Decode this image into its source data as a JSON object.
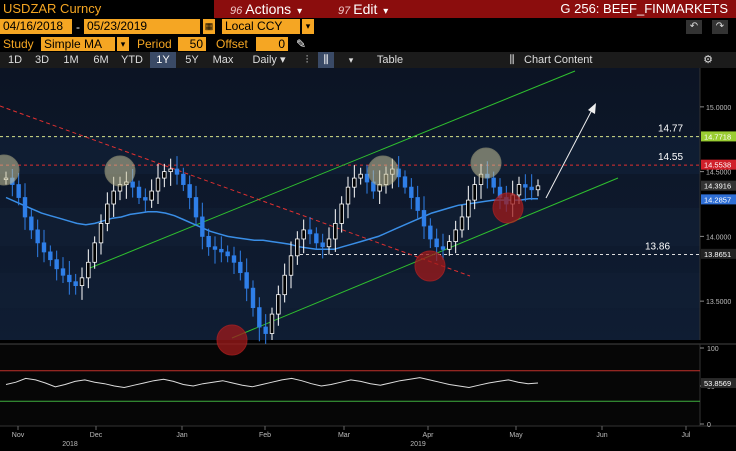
{
  "header": {
    "ticker": "USDZAR Curncy",
    "actions_num": "96",
    "actions_label": "Actions",
    "actions_arrow": "▾",
    "edit_num": "97",
    "edit_label": "Edit",
    "edit_arrow": "▾",
    "function_title": "G 256: BEEF_FINMARKETS"
  },
  "controls": {
    "start_date": "04/16/2018",
    "date_sep": "-",
    "end_date": "05/23/2019",
    "currency": "Local CCY",
    "study_label": "Study",
    "study_value": "Simple MA",
    "period_label": "Period",
    "period_value": "50",
    "offset_label": "Offset",
    "offset_value": "0"
  },
  "toolbar": {
    "ranges": [
      "1D",
      "3D",
      "1M",
      "6M",
      "YTD",
      "1Y",
      "5Y",
      "Max"
    ],
    "active_range": "1Y",
    "frequency": "Daily",
    "table_label": "Table",
    "chart_content_label": "Chart Content"
  },
  "chart_data": {
    "type": "line",
    "price_axis_ticks": [
      "15.0000",
      "14.5000",
      "14.0000",
      "13.5000"
    ],
    "price_ylim": [
      13.2,
      15.3
    ],
    "price_tags": [
      {
        "value": 14.7718,
        "label": "14.7718",
        "color": "#9acd32"
      },
      {
        "value": 14.5538,
        "label": "14.5538",
        "color": "#d0202a"
      },
      {
        "value": 14.3916,
        "label": "14.3916",
        "color": "#333333"
      },
      {
        "value": 14.2857,
        "label": "14.2857",
        "color": "#2f6fd6"
      },
      {
        "value": 13.8651,
        "label": "13.8651",
        "color": "#222222"
      }
    ],
    "level_annotations": [
      {
        "value": 14.77,
        "label": "14.77"
      },
      {
        "value": 14.55,
        "label": "14.55"
      },
      {
        "value": 13.86,
        "label": "13.86"
      }
    ],
    "oscillator_ticks": [
      "100",
      "50",
      "0"
    ],
    "oscillator_last": "53.8569",
    "x_tick_labels": [
      "Nov",
      "Dec",
      "Jan",
      "Feb",
      "Mar",
      "Apr",
      "May",
      "Jun",
      "Jul"
    ],
    "year_labels": [
      "2018",
      "2019"
    ],
    "series": [
      {
        "values": [
          14.45,
          14.4,
          14.3,
          14.15,
          14.05,
          13.95,
          13.88,
          13.82,
          13.75,
          13.7,
          13.65,
          13.62,
          13.68,
          13.8,
          13.95,
          14.1,
          14.25,
          14.35,
          14.4,
          14.42,
          14.38,
          14.3,
          14.28,
          14.35,
          14.45,
          14.5,
          14.52,
          14.48,
          14.4,
          14.3,
          14.15,
          14.0,
          13.92,
          13.9,
          13.88,
          13.85,
          13.8,
          13.72,
          13.6,
          13.45,
          13.3,
          13.25,
          13.4,
          13.55,
          13.7,
          13.85,
          13.98,
          14.05,
          14.02,
          13.95,
          13.92,
          13.98,
          14.1,
          14.25,
          14.38,
          14.45,
          14.48,
          14.42,
          14.35,
          14.4,
          14.48,
          14.52,
          14.46,
          14.38,
          14.3,
          14.2,
          14.08,
          13.98,
          13.92,
          13.9,
          13.96,
          14.05,
          14.15,
          14.28,
          14.4,
          14.48,
          14.45,
          14.38,
          14.3,
          14.25,
          14.32,
          14.4,
          14.38,
          14.36,
          14.39
        ]
      },
      {
        "values": [
          14.3,
          14.27,
          14.24,
          14.21,
          14.18,
          14.16,
          14.14,
          14.12,
          14.1,
          14.09,
          14.1,
          14.12,
          14.14,
          14.15,
          14.17,
          14.18,
          14.19,
          14.19,
          14.18,
          14.16,
          14.13,
          14.1,
          14.07,
          14.04,
          14.02,
          14.0,
          13.99,
          13.98,
          13.97,
          13.97,
          13.96,
          13.95,
          13.94,
          13.92,
          13.91,
          13.9,
          13.9,
          13.9,
          13.92,
          13.94,
          13.96,
          13.98,
          14.0,
          14.03,
          14.06,
          14.09,
          14.12,
          14.15,
          14.18,
          14.2,
          14.22,
          14.24,
          14.25,
          14.26,
          14.27,
          14.28,
          14.28,
          14.28,
          14.28,
          14.29,
          14.29
        ]
      }
    ],
    "oscillator_series": [
      52,
      55,
      60,
      58,
      54,
      49,
      52,
      56,
      58,
      55,
      53,
      50,
      48,
      51,
      54,
      57,
      59,
      56,
      52,
      50,
      53,
      55,
      57,
      54,
      51,
      49,
      52,
      55,
      58,
      60,
      57,
      53,
      50,
      52,
      55,
      58,
      56,
      53,
      51,
      54,
      57,
      59,
      61,
      58,
      55,
      52,
      50,
      48,
      51,
      54,
      56,
      58,
      55,
      53,
      54
    ]
  },
  "colors": {
    "accent": "#f5a623",
    "menu_red": "#8b0d0d",
    "up_candle": "#ffffff",
    "down_candle": "#2f7fe8",
    "ma_line": "#3a8ee6",
    "channel": "#2fbf2f",
    "resistance": "#e03030",
    "level": "#d8e088"
  },
  "icons": {
    "back": "back-arrow-icon",
    "forward": "forward-arrow-icon",
    "pencil": "pencil-icon",
    "gear": "gear-icon"
  }
}
